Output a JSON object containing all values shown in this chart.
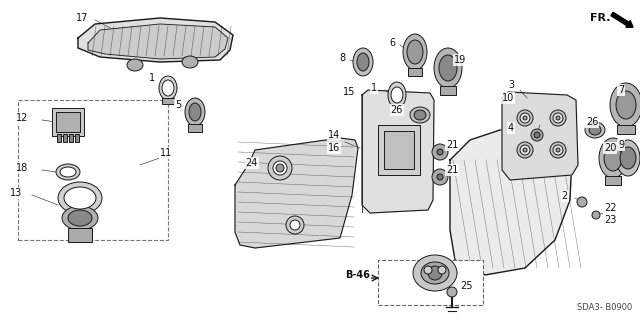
{
  "bg_color": "#ffffff",
  "line_color": "#1a1a1a",
  "diagram_code": "SDA3- B0900",
  "label_fs": 7,
  "fig_w": 6.4,
  "fig_h": 3.19,
  "dpi": 100
}
